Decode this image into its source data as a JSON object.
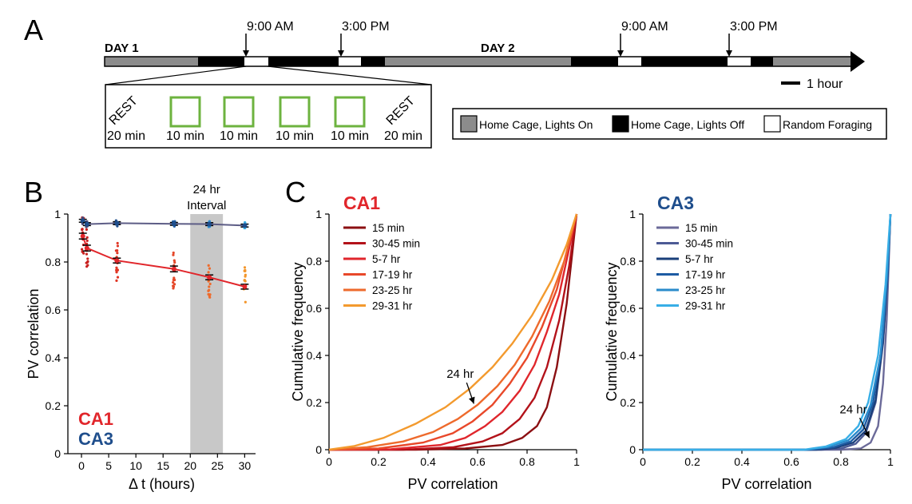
{
  "panel_letters": [
    "A",
    "B",
    "C"
  ],
  "timeline": {
    "day1_label": "DAY 1",
    "day2_label": "DAY 2",
    "time_markers": [
      "9:00 AM",
      "3:00 PM",
      "9:00 AM",
      "3:00 PM"
    ],
    "scale_label": "1 hour",
    "session": [
      {
        "top": "REST",
        "bottom": "20 min",
        "kind": "rest"
      },
      {
        "top": "",
        "bottom": "10 min",
        "kind": "box"
      },
      {
        "top": "",
        "bottom": "10 min",
        "kind": "box"
      },
      {
        "top": "",
        "bottom": "10 min",
        "kind": "box"
      },
      {
        "top": "",
        "bottom": "10 min",
        "kind": "box"
      },
      {
        "top": "REST",
        "bottom": "20 min",
        "kind": "rest"
      }
    ],
    "legend": [
      {
        "label": "Home Cage, Lights On",
        "color": "#8c8c8c"
      },
      {
        "label": "Home Cage, Lights Off",
        "color": "#000000"
      },
      {
        "label": "Random Foraging",
        "color": "#ffffff"
      }
    ],
    "box_color": "#6db33f"
  },
  "chart_data": [
    {
      "type": "line",
      "panel": "B",
      "xlabel": "Δ t (hours)",
      "ylabel": "PV correlation",
      "xlim": [
        -2.5,
        32
      ],
      "ylim": [
        0,
        1
      ],
      "xticks": [
        0,
        5,
        10,
        15,
        20,
        25,
        30
      ],
      "yticks": [
        0,
        0.2,
        0.4,
        0.6,
        0.8,
        1
      ],
      "ytick_labels": [
        "0",
        "0.2",
        "0.4",
        "0.6",
        "0.8",
        "1"
      ],
      "shaded_interval": {
        "x": [
          20,
          26
        ],
        "label_line1": "24 hr",
        "label_line2": "Interval"
      },
      "legend_texts": [
        {
          "text": "CA1",
          "color": "#e1262b"
        },
        {
          "text": "CA3",
          "color": "#1f4e8c"
        }
      ],
      "series": [
        {
          "name": "CA1",
          "color": "#e1262b",
          "x": [
            0.25,
            1,
            6.5,
            17,
            23.5,
            30
          ],
          "y": [
            0.908,
            0.858,
            0.806,
            0.771,
            0.736,
            0.697
          ],
          "err": [
            0.012,
            0.012,
            0.01,
            0.012,
            0.01,
            0.01
          ],
          "dot_colors": [
            "#c8201f",
            "#c8201f",
            "#e03524",
            "#e5482a",
            "#ee6b2c",
            "#f3962b"
          ]
        },
        {
          "name": "CA3",
          "color": "#5d5d86",
          "x": [
            0.25,
            1,
            6.5,
            17,
            23.5,
            30
          ],
          "y": [
            0.972,
            0.958,
            0.962,
            0.959,
            0.958,
            0.952
          ],
          "err": [
            0.006,
            0.006,
            0.006,
            0.006,
            0.006,
            0.006
          ],
          "dot_colors": [
            "#4a4a78",
            "#4a4a78",
            "#1f4e8c",
            "#1f5fa8",
            "#2f8fd0",
            "#3aaee5"
          ]
        }
      ]
    },
    {
      "type": "line",
      "panel": "C",
      "title": "CA1",
      "title_color": "#e1262b",
      "xlabel": "PV correlation",
      "ylabel": "Cumulative frequency",
      "xlim": [
        0,
        1
      ],
      "ylim": [
        0,
        1
      ],
      "xticks": [
        0,
        0.2,
        0.4,
        0.6,
        0.8,
        1
      ],
      "xtick_labels": [
        "0",
        "0.2",
        "0.4",
        "0.6",
        "0.8",
        "1"
      ],
      "yticks": [
        0,
        0.2,
        0.4,
        0.6,
        0.8,
        1
      ],
      "ytick_labels": [
        "0",
        "0.2",
        "0.4",
        "0.6",
        "0.8",
        "1"
      ],
      "annotation": {
        "text": "24 hr",
        "text_x": 0.53,
        "text_y": 0.305,
        "arrow_to_x": 0.585,
        "arrow_to_y": 0.195
      },
      "series": [
        {
          "name": "15 min",
          "color": "#8b0f12",
          "x": [
            0,
            0.35,
            0.55,
            0.7,
            0.78,
            0.84,
            0.88,
            0.92,
            0.96,
            1
          ],
          "y": [
            0,
            0,
            0.005,
            0.02,
            0.05,
            0.1,
            0.18,
            0.35,
            0.62,
            1
          ]
        },
        {
          "name": "30-45 min",
          "color": "#b3121a",
          "x": [
            0,
            0.3,
            0.5,
            0.62,
            0.7,
            0.77,
            0.83,
            0.88,
            0.93,
            0.97,
            1
          ],
          "y": [
            0,
            0,
            0.01,
            0.035,
            0.07,
            0.13,
            0.22,
            0.35,
            0.55,
            0.78,
            1
          ]
        },
        {
          "name": "5-7 hr",
          "color": "#e0262c",
          "x": [
            0,
            0.25,
            0.45,
            0.55,
            0.63,
            0.7,
            0.77,
            0.83,
            0.88,
            0.93,
            1
          ],
          "y": [
            0,
            0.002,
            0.02,
            0.05,
            0.1,
            0.16,
            0.25,
            0.36,
            0.5,
            0.66,
            1
          ]
        },
        {
          "name": "17-19 hr",
          "color": "#e8482a",
          "x": [
            0,
            0.2,
            0.38,
            0.5,
            0.58,
            0.66,
            0.73,
            0.8,
            0.86,
            0.92,
            1
          ],
          "y": [
            0,
            0.005,
            0.03,
            0.07,
            0.12,
            0.19,
            0.28,
            0.39,
            0.52,
            0.68,
            1
          ]
        },
        {
          "name": "23-25 hr",
          "color": "#ee6a2c",
          "x": [
            0,
            0.15,
            0.3,
            0.42,
            0.52,
            0.6,
            0.68,
            0.75,
            0.82,
            0.89,
            0.95,
            1
          ],
          "y": [
            0,
            0.01,
            0.035,
            0.075,
            0.13,
            0.19,
            0.27,
            0.36,
            0.48,
            0.63,
            0.8,
            1
          ]
        },
        {
          "name": "29-31 hr",
          "color": "#f39a2e",
          "x": [
            0,
            0.1,
            0.22,
            0.35,
            0.47,
            0.57,
            0.66,
            0.74,
            0.82,
            0.9,
            0.96,
            1
          ],
          "y": [
            0,
            0.015,
            0.05,
            0.11,
            0.18,
            0.26,
            0.35,
            0.45,
            0.57,
            0.72,
            0.87,
            1
          ]
        }
      ]
    },
    {
      "type": "line",
      "panel": "C",
      "title": "CA3",
      "title_color": "#1f4e8c",
      "xlabel": "PV correlation",
      "ylabel": "Cumulative frequency",
      "xlim": [
        0,
        1
      ],
      "ylim": [
        0,
        1
      ],
      "xticks": [
        0,
        0.2,
        0.4,
        0.6,
        0.8,
        1
      ],
      "xtick_labels": [
        "0",
        "0.2",
        "0.4",
        "0.6",
        "0.8",
        "1"
      ],
      "yticks": [
        0,
        0.2,
        0.4,
        0.6,
        0.8,
        1
      ],
      "ytick_labels": [
        "0",
        "0.2",
        "0.4",
        "0.6",
        "0.8",
        "1"
      ],
      "annotation": {
        "text": "24 hr",
        "text_x": 0.85,
        "text_y": 0.155,
        "arrow_to_x": 0.915,
        "arrow_to_y": 0.05
      },
      "series": [
        {
          "name": "15 min",
          "color": "#6b6a99",
          "x": [
            0,
            0.8,
            0.88,
            0.92,
            0.95,
            0.97,
            0.985,
            1
          ],
          "y": [
            0,
            0,
            0.005,
            0.03,
            0.1,
            0.28,
            0.55,
            1
          ]
        },
        {
          "name": "30-45 min",
          "color": "#4c5a95",
          "x": [
            0,
            0.72,
            0.8,
            0.86,
            0.9,
            0.94,
            0.97,
            0.99,
            1
          ],
          "y": [
            0,
            0,
            0.005,
            0.025,
            0.07,
            0.2,
            0.45,
            0.75,
            1
          ]
        },
        {
          "name": "5-7 hr",
          "color": "#1a3f7a",
          "x": [
            0,
            0.7,
            0.78,
            0.85,
            0.9,
            0.94,
            0.97,
            0.99,
            1
          ],
          "y": [
            0,
            0,
            0.008,
            0.03,
            0.08,
            0.21,
            0.46,
            0.76,
            1
          ]
        },
        {
          "name": "17-19 hr",
          "color": "#1d5ba3",
          "x": [
            0,
            0.68,
            0.77,
            0.84,
            0.89,
            0.93,
            0.965,
            0.99,
            1
          ],
          "y": [
            0,
            0,
            0.01,
            0.035,
            0.085,
            0.2,
            0.44,
            0.77,
            1
          ]
        },
        {
          "name": "23-25 hr",
          "color": "#2a8bcb",
          "x": [
            0,
            0.66,
            0.75,
            0.83,
            0.88,
            0.92,
            0.96,
            0.985,
            1
          ],
          "y": [
            0,
            0,
            0.012,
            0.04,
            0.09,
            0.19,
            0.4,
            0.72,
            1
          ]
        },
        {
          "name": "29-31 hr",
          "color": "#38aee6",
          "x": [
            0,
            0.65,
            0.74,
            0.82,
            0.87,
            0.91,
            0.95,
            0.98,
            1
          ],
          "y": [
            0,
            0,
            0.014,
            0.045,
            0.1,
            0.2,
            0.4,
            0.7,
            1
          ]
        }
      ]
    }
  ]
}
